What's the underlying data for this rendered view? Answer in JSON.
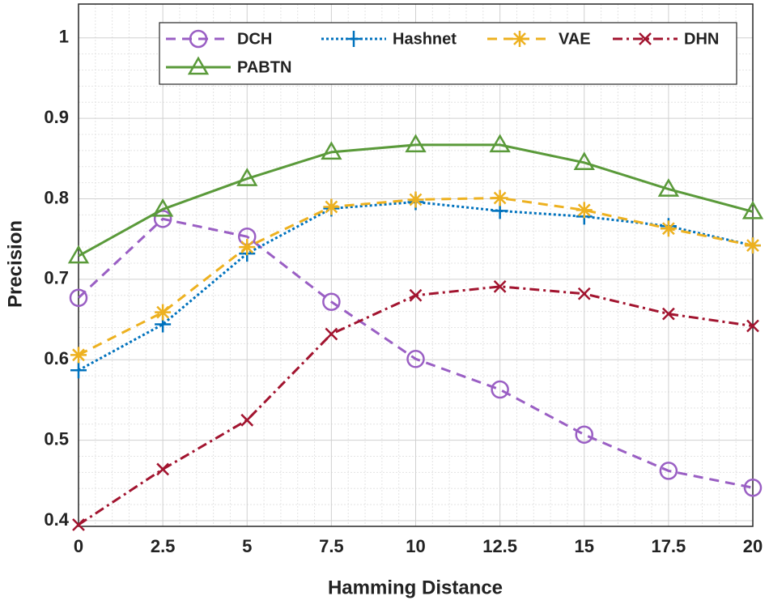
{
  "chart_data": {
    "type": "line",
    "x_label": "Hamming Distance",
    "y_label": "Precision",
    "x": [
      0,
      2.5,
      5,
      7.5,
      10,
      12.5,
      15,
      17.5,
      20
    ],
    "xlim": [
      0,
      20
    ],
    "xticks": [
      0,
      2.5,
      5,
      7.5,
      10,
      12.5,
      15,
      17.5,
      20
    ],
    "ylim": [
      0.393,
      1.042
    ],
    "yticks": [
      0.4,
      0.5,
      0.6,
      0.7,
      0.8,
      0.9,
      1
    ],
    "grid": true,
    "minor_grid": true,
    "legend": "top",
    "series": [
      {
        "name": "DCH",
        "color": "#9a5fc4",
        "marker": "circle",
        "line_style": "dashed",
        "values": [
          0.677,
          0.775,
          0.753,
          0.672,
          0.601,
          0.563,
          0.507,
          0.462,
          0.441
        ]
      },
      {
        "name": "Hashnet",
        "color": "#0072bd",
        "marker": "plus",
        "line_style": "dotted",
        "values": [
          0.587,
          0.644,
          0.732,
          0.788,
          0.796,
          0.785,
          0.778,
          0.766,
          0.742
        ]
      },
      {
        "name": "VAE",
        "color": "#edb120",
        "marker": "asterisk",
        "line_style": "dashed",
        "values": [
          0.606,
          0.659,
          0.74,
          0.79,
          0.799,
          0.801,
          0.786,
          0.763,
          0.742
        ]
      },
      {
        "name": "DHN",
        "color": "#a2142f",
        "marker": "x",
        "line_style": "dashdot",
        "values": [
          0.395,
          0.464,
          0.525,
          0.632,
          0.68,
          0.691,
          0.682,
          0.657,
          0.642
        ]
      },
      {
        "name": "PABTN",
        "color": "#5a9a3a",
        "marker": "triangle",
        "line_style": "solid",
        "values": [
          0.729,
          0.787,
          0.825,
          0.858,
          0.867,
          0.867,
          0.845,
          0.812,
          0.784
        ]
      }
    ]
  }
}
